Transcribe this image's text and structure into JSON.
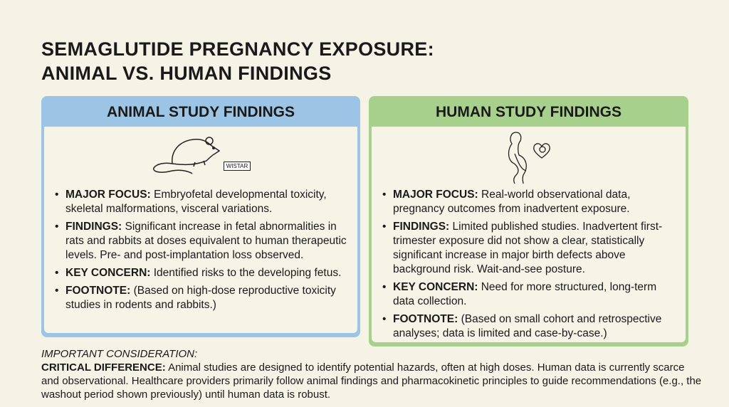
{
  "title": {
    "line1": "SEMAGLUTIDE PREGNANCY EXPOSURE:",
    "line2": "ANIMAL VS. HUMAN FINDINGS"
  },
  "colors": {
    "animal_header": "#9cc4e4",
    "human_header": "#a8d08d",
    "background": "#f5f2e6"
  },
  "animal": {
    "heading": "ANIMAL STUDY FINDINGS",
    "icon": "rat-icon",
    "icon_tag": "WISTAR",
    "items": [
      {
        "label": "MAJOR FOCUS:",
        "text": " Embryofetal developmental toxicity, skeletal malformations, visceral variations."
      },
      {
        "label": "FINDINGS:",
        "text": " Significant increase in fetal abnormalities in rats and rabbits at doses equivalent to human therapeutic levels. Pre- and post-implantation loss observed."
      },
      {
        "label": "KEY CONCERN:",
        "text": " Identified risks to the developing fetus."
      },
      {
        "label": "FOOTNOTE:",
        "text": " (Based on high-dose reproductive toxicity studies in rodents and rabbits.)"
      }
    ]
  },
  "human": {
    "heading": "HUMAN STUDY FINDINGS",
    "icon": "pregnant-woman-icon",
    "items": [
      {
        "label": "MAJOR FOCUS:",
        "text": " Real-world observational data, pregnancy outcomes from inadvertent exposure."
      },
      {
        "label": "FINDINGS:",
        "text": " Limited published studies. Inadvertent first-trimester exposure did not show a clear, statistically significant increase in major birth defects above background risk. Wait-and-see posture."
      },
      {
        "label": "KEY CONCERN:",
        "text": " Need for more structured, long-term data collection."
      },
      {
        "label": "FOOTNOTE:",
        "text": " (Based on small cohort and retrospective analyses; data is limited and case-by-case.)"
      }
    ]
  },
  "consideration": {
    "heading": "IMPORTANT CONSIDERATION:",
    "label": "CRITICAL DIFFERENCE:",
    "text": " Animal studies are designed to identify potential hazards, often at high doses. Human data is currently scarce and observational. Healthcare providers primarily follow animal findings and pharmacokinetic principles to guide recommendations (e.g., the washout period shown previously) until human data is robust."
  }
}
